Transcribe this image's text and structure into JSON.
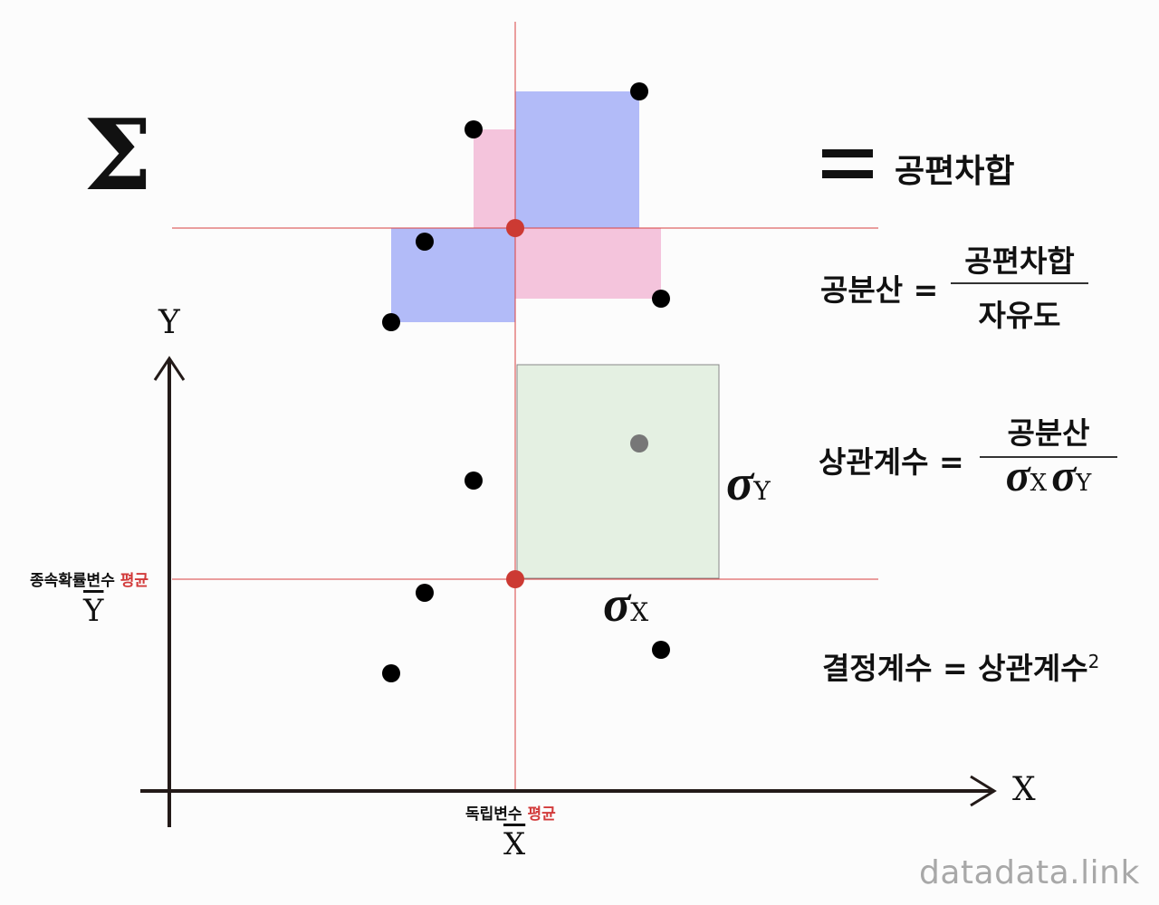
{
  "sum_symbol": "Σ",
  "equals_sign": "=",
  "sum_result": "공편차합",
  "axes": {
    "x_label": "X",
    "y_label": "Y"
  },
  "mean_labels": {
    "y_mean_prefix": "종속확률변수",
    "y_mean_suffix": "평균",
    "y_mean_symbol": "Y",
    "x_mean_prefix": "독립변수",
    "x_mean_suffix": "평균",
    "x_mean_symbol": "X"
  },
  "sigma": {
    "symbol": "σ",
    "x_sub": "X",
    "y_sub": "Y"
  },
  "formulas": {
    "covariance": {
      "lhs": "공분산",
      "eq": "=",
      "numerator": "공편차합",
      "denominator": "자유도"
    },
    "correlation": {
      "lhs": "상관계수",
      "eq": "=",
      "numerator": "공분산",
      "den_sigma": "σ",
      "den_sub_x": "X",
      "den_sub_y": "Y"
    },
    "determination": {
      "lhs": "결정계수",
      "eq": "=",
      "rhs": "상관계수",
      "exponent": "2"
    }
  },
  "colors": {
    "positive_area": "#f2bad6",
    "negative_area": "#b2bbf8",
    "mean_line": "#d94040",
    "mean_point": "#cc3a33",
    "sigma_box": "#e4f0e2",
    "axis": "#231a18"
  },
  "watermark": "datadata.link"
}
